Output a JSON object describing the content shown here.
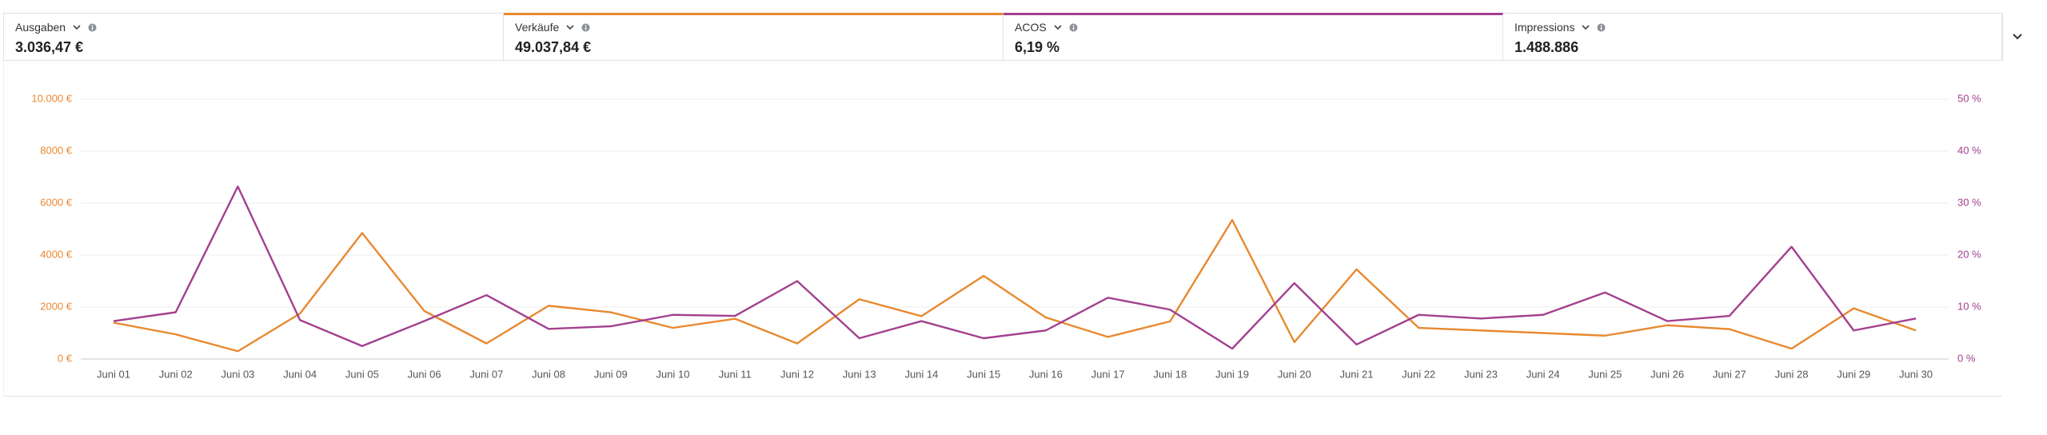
{
  "metrics": [
    {
      "label": "Ausgaben",
      "value": "3.036,47 €"
    },
    {
      "label": "Verkäufe",
      "value": "49.037,84 €",
      "color": "#e8892f"
    },
    {
      "label": "ACOS",
      "value": "6,19 %",
      "color": "#a3408f"
    },
    {
      "label": "Impressions",
      "value": "1.488.886"
    }
  ],
  "chart_data": {
    "type": "line",
    "categories": [
      "Juni 01",
      "Juni 02",
      "Juni 03",
      "Juni 04",
      "Juni 05",
      "Juni 06",
      "Juni 07",
      "Juni 08",
      "Juni 09",
      "Juni 10",
      "Juni 11",
      "Juni 12",
      "Juni 13",
      "Juni 14",
      "Juni 15",
      "Juni 16",
      "Juni 17",
      "Juni 18",
      "Juni 19",
      "Juni 20",
      "Juni 21",
      "Juni 22",
      "Juni 23",
      "Juni 24",
      "Juni 25",
      "Juni 26",
      "Juni 27",
      "Juni 28",
      "Juni 29",
      "Juni 30"
    ],
    "series": [
      {
        "color": "#e8892f",
        "values": [
          1400,
          950,
          300,
          1750,
          4850,
          1850,
          600,
          2050,
          1800,
          1200,
          1550,
          600,
          2300,
          1650,
          3200,
          1600,
          850,
          1450,
          5350,
          650,
          3450,
          1200,
          1100,
          1000,
          900,
          1300,
          1150,
          400,
          1950,
          1100
        ]
      },
      {
        "color": "#a3408f",
        "axis": "y2",
        "values": [
          7.3,
          9,
          33.2,
          7.5,
          2.5,
          7.3,
          12.3,
          5.8,
          6.3,
          8.5,
          8.3,
          15,
          4,
          7.3,
          4,
          5.5,
          11.8,
          9.5,
          2,
          14.6,
          2.8,
          8.5,
          7.8,
          8.5,
          12.8,
          7.3,
          8.3,
          21.6,
          5.5,
          7.8
        ]
      }
    ],
    "ylim": [
      0,
      10000
    ],
    "yticks": [
      {
        "value": 0,
        "label": "0 €"
      },
      {
        "value": 2000,
        "label": "2000 €"
      },
      {
        "value": 4000,
        "label": "4000 €"
      },
      {
        "value": 6000,
        "label": "6000 €"
      },
      {
        "value": 8000,
        "label": "8000 €"
      },
      {
        "value": 10000,
        "label": "10.000 €"
      }
    ],
    "y2lim": [
      0,
      50
    ],
    "y2ticks": [
      {
        "value": 0,
        "label": "0 %"
      },
      {
        "value": 10,
        "label": "10 %"
      },
      {
        "value": 20,
        "label": "20 %"
      },
      {
        "value": 30,
        "label": "30 %"
      },
      {
        "value": 40,
        "label": "40 %"
      },
      {
        "value": 50,
        "label": "50 %"
      }
    ],
    "ytick_color": "#e8892f",
    "y2tick_color": "#a3408f",
    "grid": true
  }
}
